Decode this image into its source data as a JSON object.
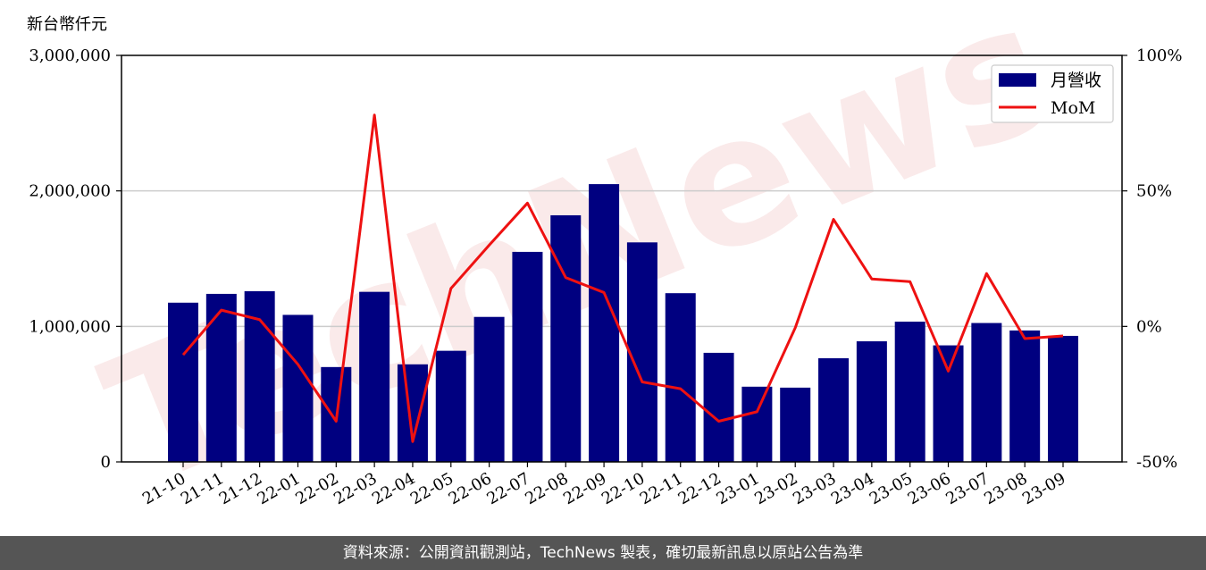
{
  "unit_label": "新台幣仟元",
  "footer_text": "資料來源：公開資訊觀測站，TechNews 製表，確切最新訊息以原站公告為準",
  "watermark": "TechNews",
  "colors": {
    "bar": "#000080",
    "line": "#ee1111",
    "grid": "#cccccc",
    "footer_bg": "#555555"
  },
  "chart_data": {
    "type": "bar",
    "categories": [
      "21-10",
      "21-11",
      "21-12",
      "22-01",
      "22-02",
      "22-03",
      "22-04",
      "22-05",
      "22-06",
      "22-07",
      "22-08",
      "22-09",
      "22-10",
      "22-11",
      "22-12",
      "23-01",
      "23-02",
      "23-03",
      "23-04",
      "23-05",
      "23-06",
      "23-07",
      "23-08",
      "23-09"
    ],
    "series": [
      {
        "name": "月營收",
        "type": "bar",
        "axis": "left",
        "values": [
          1175000,
          1240000,
          1260000,
          1085000,
          700000,
          1255000,
          720000,
          820000,
          1070000,
          1550000,
          1820000,
          2050000,
          1620000,
          1245000,
          805000,
          555000,
          548000,
          765000,
          890000,
          1035000,
          860000,
          1025000,
          970000,
          930000
        ]
      },
      {
        "name": "MoM",
        "type": "line",
        "axis": "right",
        "values": [
          -10.5,
          6,
          2.5,
          -14,
          -35,
          78,
          -42.5,
          14,
          30,
          45.5,
          18,
          12.5,
          -20.5,
          -23,
          -35,
          -31.5,
          -0.5,
          39.5,
          17.5,
          16.5,
          -16.5,
          19.5,
          -4.5,
          -3.5
        ]
      }
    ],
    "y_left": {
      "ylim": [
        0,
        3000000
      ],
      "ticks": [
        0,
        1000000,
        2000000,
        3000000
      ],
      "tick_labels": [
        "0",
        "1,000,000",
        "2,000,000",
        "3,000,000"
      ]
    },
    "y_right": {
      "ylim": [
        -50,
        100
      ],
      "ticks": [
        -50,
        0,
        50,
        100
      ],
      "tick_labels": [
        "-50%",
        "0%",
        "50%",
        "100%"
      ]
    },
    "grid": "horizontal",
    "legend_position": "top-right",
    "xlabel": "",
    "ylabel": "新台幣仟元"
  }
}
